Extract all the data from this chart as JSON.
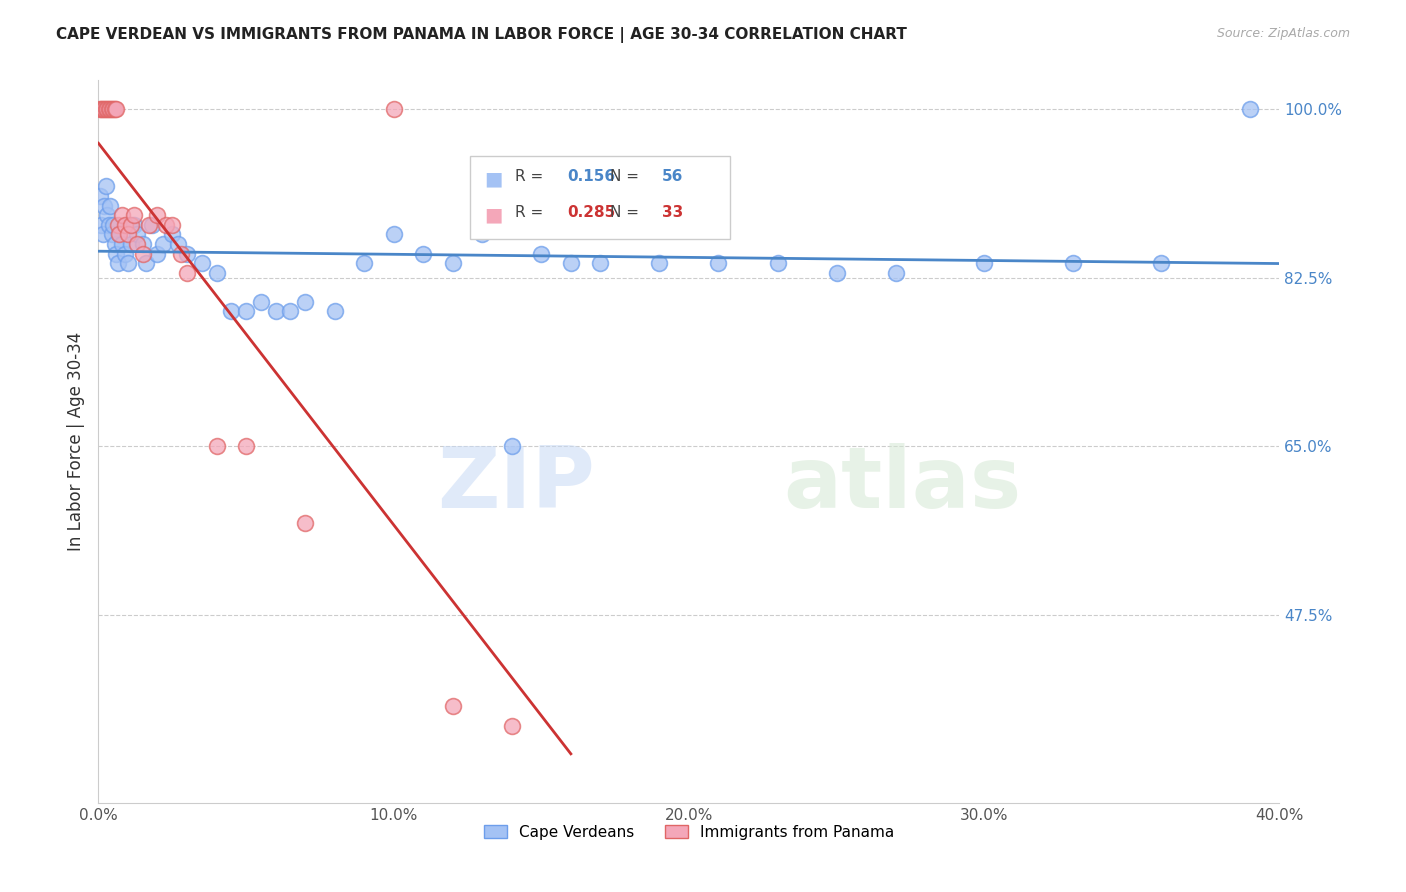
{
  "title": "CAPE VERDEAN VS IMMIGRANTS FROM PANAMA IN LABOR FORCE | AGE 30-34 CORRELATION CHART",
  "source": "Source: ZipAtlas.com",
  "ylabel": "In Labor Force | Age 30-34",
  "x_tick_labels": [
    "0.0%",
    "10.0%",
    "20.0%",
    "30.0%",
    "40.0%"
  ],
  "x_tick_vals": [
    0.0,
    10.0,
    20.0,
    30.0,
    40.0
  ],
  "y_tick_labels_right": [
    "100.0%",
    "82.5%",
    "65.0%",
    "47.5%"
  ],
  "y_tick_vals": [
    100.0,
    82.5,
    65.0,
    47.5
  ],
  "xlim": [
    0.0,
    40.0
  ],
  "ylim": [
    28.0,
    103.0
  ],
  "blue_R": "0.156",
  "blue_N": "56",
  "pink_R": "0.285",
  "pink_N": "33",
  "blue_color": "#a4c2f4",
  "pink_color": "#f4a7b9",
  "blue_edge_color": "#6d9eeb",
  "pink_edge_color": "#e06666",
  "blue_line_color": "#4a86c8",
  "pink_line_color": "#cc3333",
  "watermark_zip": "ZIP",
  "watermark_atlas": "atlas",
  "blue_x": [
    0.05,
    0.1,
    0.15,
    0.2,
    0.25,
    0.3,
    0.35,
    0.4,
    0.45,
    0.5,
    0.55,
    0.6,
    0.65,
    0.7,
    0.8,
    0.9,
    1.0,
    1.05,
    1.1,
    1.2,
    1.3,
    1.5,
    1.6,
    1.8,
    2.0,
    2.2,
    2.5,
    2.7,
    3.0,
    3.5,
    4.0,
    4.5,
    5.0,
    5.5,
    6.0,
    6.5,
    7.0,
    8.0,
    9.0,
    10.0,
    11.0,
    12.0,
    13.0,
    14.0,
    15.0,
    16.0,
    17.0,
    19.0,
    21.0,
    23.0,
    25.0,
    27.0,
    30.0,
    33.0,
    36.0,
    39.0
  ],
  "blue_y": [
    91.0,
    88.0,
    87.0,
    90.0,
    92.0,
    89.0,
    88.0,
    90.0,
    87.0,
    88.0,
    86.0,
    85.0,
    84.0,
    87.0,
    86.0,
    85.0,
    84.0,
    88.0,
    86.0,
    88.0,
    87.0,
    86.0,
    84.0,
    88.0,
    85.0,
    86.0,
    87.0,
    86.0,
    85.0,
    84.0,
    83.0,
    79.0,
    79.0,
    80.0,
    79.0,
    79.0,
    80.0,
    79.0,
    84.0,
    87.0,
    85.0,
    84.0,
    87.0,
    65.0,
    85.0,
    84.0,
    84.0,
    84.0,
    84.0,
    84.0,
    83.0,
    83.0,
    84.0,
    84.0,
    84.0,
    100.0
  ],
  "pink_x": [
    0.05,
    0.1,
    0.15,
    0.2,
    0.25,
    0.3,
    0.35,
    0.4,
    0.45,
    0.5,
    0.55,
    0.6,
    0.65,
    0.7,
    0.8,
    0.9,
    1.0,
    1.1,
    1.2,
    1.3,
    1.5,
    1.7,
    2.0,
    2.3,
    2.5,
    2.8,
    3.0,
    4.0,
    5.0,
    7.0,
    10.0,
    12.0,
    14.0
  ],
  "pink_y": [
    100.0,
    100.0,
    100.0,
    100.0,
    100.0,
    100.0,
    100.0,
    100.0,
    100.0,
    100.0,
    100.0,
    100.0,
    88.0,
    87.0,
    89.0,
    88.0,
    87.0,
    88.0,
    89.0,
    86.0,
    85.0,
    88.0,
    89.0,
    88.0,
    88.0,
    85.0,
    83.0,
    65.0,
    65.0,
    57.0,
    100.0,
    38.0,
    36.0
  ],
  "bottom_legend_blue": "Cape Verdeans",
  "bottom_legend_pink": "Immigrants from Panama"
}
